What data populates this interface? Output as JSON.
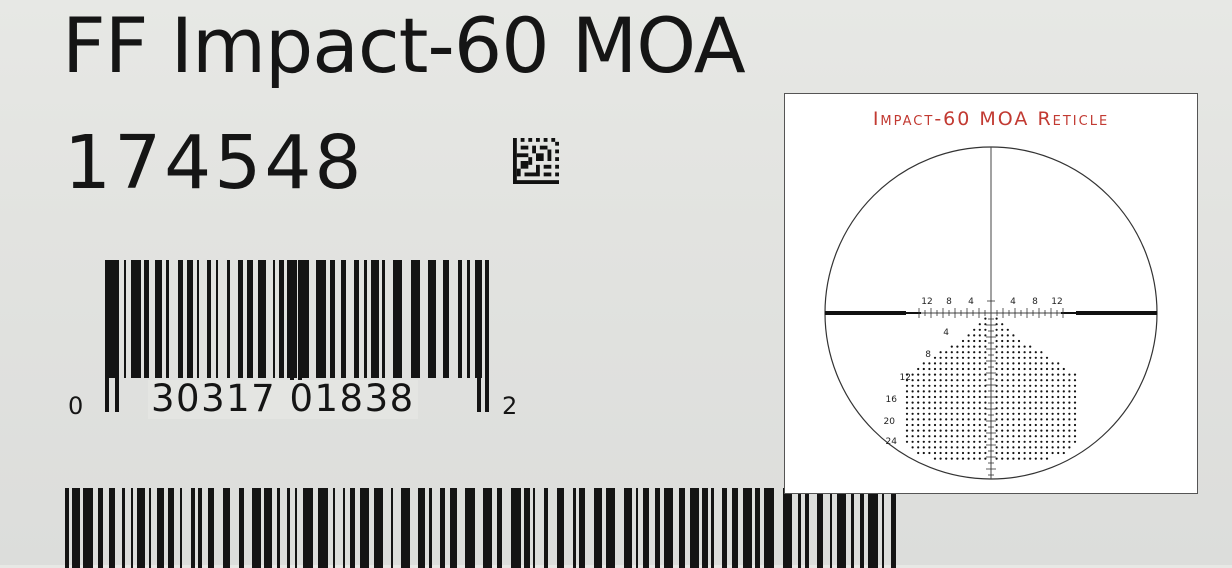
{
  "label": {
    "product_name": "FF Impact-60 MOA",
    "part_number": "174548",
    "upc": {
      "left_digit": "0",
      "main_digits": "30317 01838",
      "right_digit": "2"
    }
  },
  "reticle_inset": {
    "title": "Impact-60 MOA Reticle",
    "title_color": "#c23a32",
    "horizontal_labels": [
      "12",
      "8",
      "4",
      "4",
      "8",
      "12"
    ],
    "vertical_labels": [
      "4",
      "8",
      "12",
      "16",
      "20",
      "24"
    ]
  }
}
